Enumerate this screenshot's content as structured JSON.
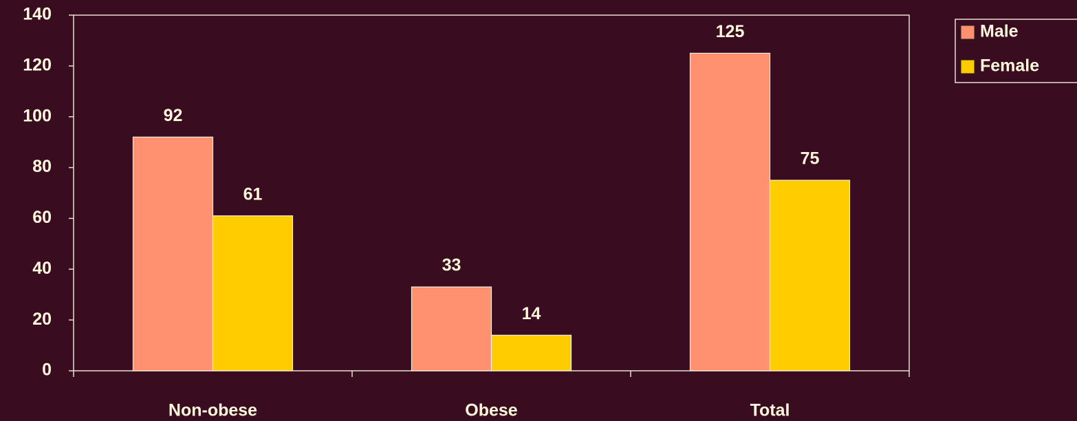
{
  "chart_data": {
    "type": "bar",
    "categories": [
      "Non-obese",
      "Obese",
      "Total"
    ],
    "series": [
      {
        "name": "Male",
        "color": "#ff9070",
        "values": [
          92,
          33,
          125
        ]
      },
      {
        "name": "Female",
        "color": "#ffcc00",
        "values": [
          61,
          14,
          75
        ]
      }
    ],
    "ylim": [
      0,
      140
    ],
    "yticks": [
      0,
      20,
      40,
      60,
      80,
      100,
      120,
      140
    ],
    "legend": "right"
  }
}
